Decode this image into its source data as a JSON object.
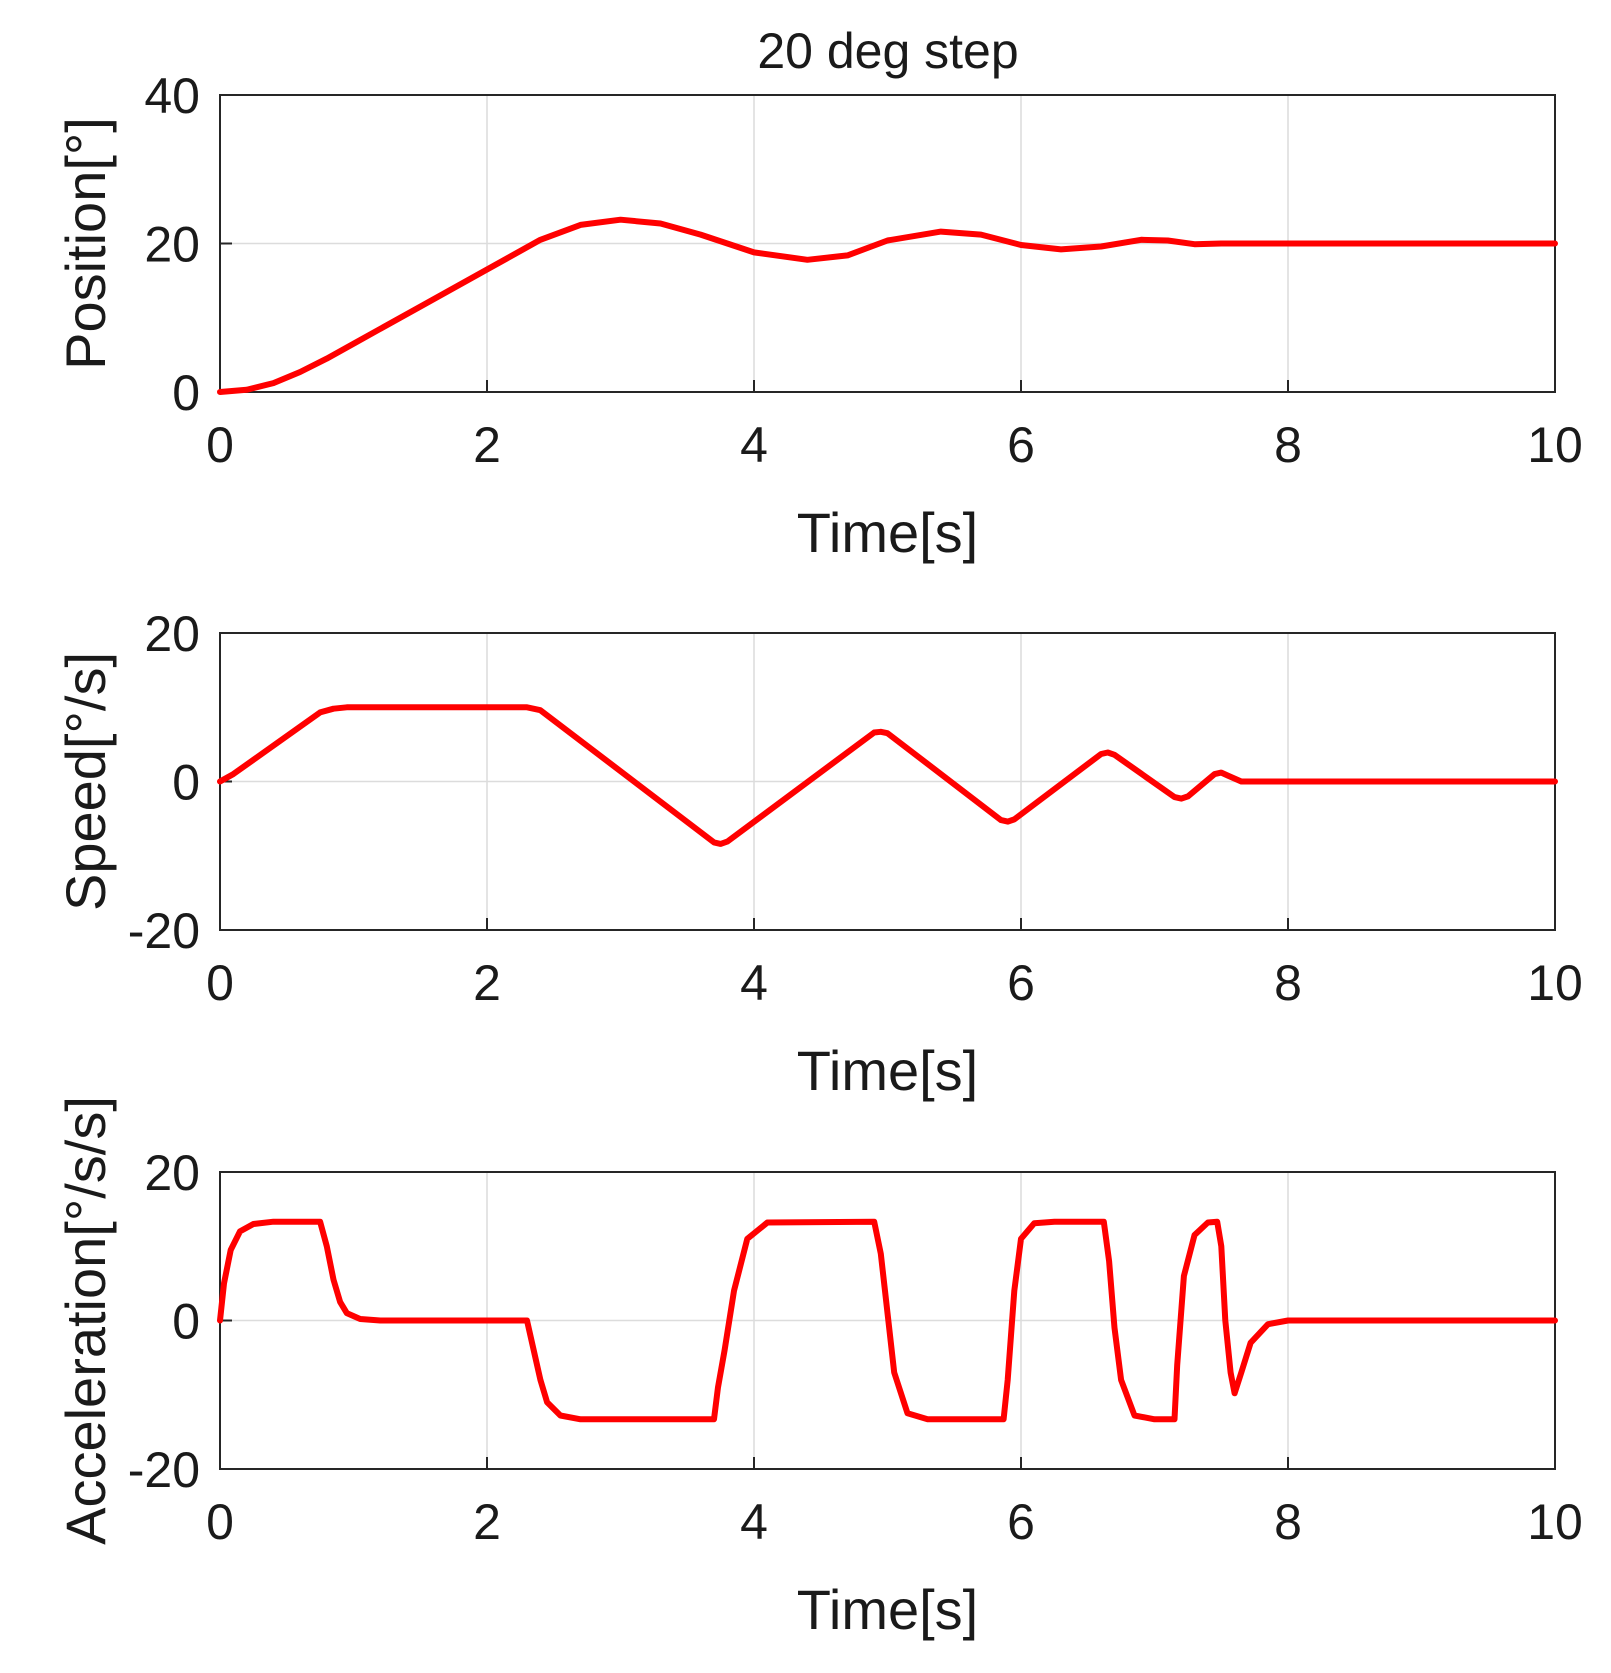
{
  "figure": {
    "title": "20 deg step",
    "series_color": "#ff0000"
  },
  "chart_data": [
    {
      "type": "line",
      "title": "20 deg step",
      "xlabel": "Time[s]",
      "ylabel": "Position[°]",
      "xlim": [
        0,
        10
      ],
      "ylim": [
        0,
        40
      ],
      "xticks": [
        0,
        2,
        4,
        6,
        8,
        10
      ],
      "yticks": [
        0,
        20,
        40
      ],
      "grid": true,
      "series": [
        {
          "name": "Position",
          "x": [
            0,
            0.2,
            0.4,
            0.6,
            0.8,
            1.0,
            1.5,
            2.0,
            2.4,
            2.7,
            3.0,
            3.3,
            3.6,
            4.0,
            4.4,
            4.7,
            5.0,
            5.4,
            5.7,
            6.0,
            6.3,
            6.6,
            6.9,
            7.1,
            7.3,
            7.5,
            7.7,
            8.0,
            9.0,
            10.0
          ],
          "y": [
            0,
            0.3,
            1.2,
            2.7,
            4.5,
            6.5,
            11.5,
            16.5,
            20.5,
            22.5,
            23.2,
            22.7,
            21.2,
            18.8,
            17.8,
            18.4,
            20.4,
            21.6,
            21.2,
            19.8,
            19.2,
            19.6,
            20.5,
            20.4,
            19.9,
            20.0,
            20.0,
            20.0,
            20.0,
            20.0
          ]
        }
      ]
    },
    {
      "type": "line",
      "xlabel": "Time[s]",
      "ylabel": "Speed[°/s]",
      "xlim": [
        0,
        10
      ],
      "ylim": [
        -20,
        20
      ],
      "xticks": [
        0,
        2,
        4,
        6,
        8,
        10
      ],
      "yticks": [
        -20,
        0,
        20
      ],
      "grid": true,
      "series": [
        {
          "name": "Speed",
          "x": [
            0,
            0.1,
            0.75,
            0.85,
            0.95,
            2.3,
            2.4,
            3.7,
            3.75,
            3.8,
            4.9,
            4.95,
            5.0,
            5.85,
            5.9,
            5.95,
            6.6,
            6.65,
            6.7,
            7.15,
            7.2,
            7.25,
            7.45,
            7.5,
            7.55,
            7.65,
            8.0,
            10.0
          ],
          "y": [
            0,
            1.0,
            9.3,
            9.8,
            10.0,
            10.0,
            9.6,
            -8.2,
            -8.4,
            -8.1,
            6.6,
            6.7,
            6.5,
            -5.2,
            -5.4,
            -5.1,
            3.7,
            3.9,
            3.6,
            -2.1,
            -2.3,
            -2.0,
            1.0,
            1.2,
            0.8,
            0,
            0,
            0
          ]
        }
      ]
    },
    {
      "type": "line",
      "xlabel": "Time[s]",
      "ylabel": "Acceleration[°/s/s]",
      "xlim": [
        0,
        10
      ],
      "ylim": [
        -20,
        20
      ],
      "xticks": [
        0,
        2,
        4,
        6,
        8,
        10
      ],
      "yticks": [
        -20,
        0,
        20
      ],
      "grid": true,
      "series": [
        {
          "name": "Acceleration",
          "x": [
            0,
            0.03,
            0.08,
            0.15,
            0.25,
            0.4,
            0.75,
            0.8,
            0.85,
            0.9,
            0.95,
            1.05,
            1.2,
            2.3,
            2.35,
            2.4,
            2.45,
            2.55,
            2.7,
            3.7,
            3.73,
            3.78,
            3.85,
            3.95,
            4.1,
            4.9,
            4.95,
            5.0,
            5.05,
            5.15,
            5.3,
            5.87,
            5.9,
            5.95,
            6.0,
            6.1,
            6.25,
            6.62,
            6.66,
            6.7,
            6.75,
            6.85,
            7.0,
            7.15,
            7.17,
            7.22,
            7.3,
            7.4,
            7.47,
            7.5,
            7.53,
            7.57,
            7.6,
            7.65,
            7.72,
            7.85,
            8.0,
            10.0
          ],
          "y": [
            0,
            5,
            9.5,
            12,
            13,
            13.3,
            13.3,
            10,
            5.5,
            2.5,
            1.0,
            0.2,
            0,
            0,
            -4,
            -8,
            -11,
            -12.8,
            -13.3,
            -13.3,
            -9,
            -4,
            4,
            11,
            13.2,
            13.3,
            9,
            1,
            -7,
            -12.5,
            -13.3,
            -13.3,
            -8,
            4,
            11,
            13.1,
            13.3,
            13.3,
            8,
            -1,
            -8,
            -12.8,
            -13.3,
            -13.3,
            -6,
            6,
            11.5,
            13.2,
            13.3,
            10,
            0,
            -7,
            -9.8,
            -7,
            -3,
            -0.5,
            0,
            0
          ]
        }
      ]
    }
  ]
}
